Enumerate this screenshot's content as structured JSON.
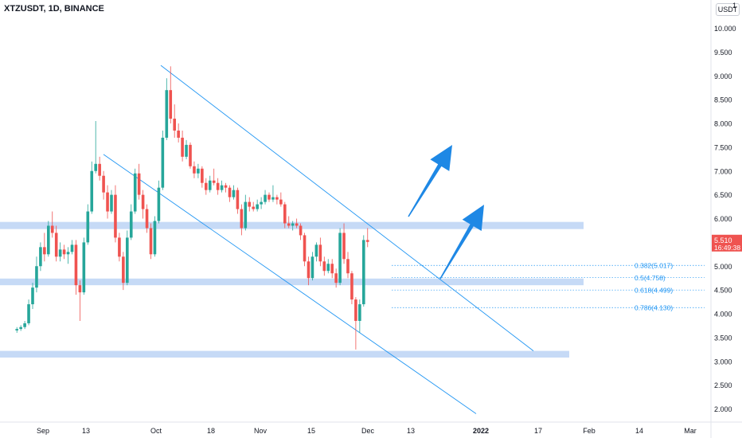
{
  "header": {
    "symbol_label": "XTZUSDT, 1D, BINANCE",
    "currency_button": "USDT",
    "axis_edge_label": "1"
  },
  "colors": {
    "up": "#26a69a",
    "down": "#ef5350",
    "zone_fill": "#bcd4f5",
    "channel_line": "#2196f3",
    "arrow": "#1e88e5",
    "fib_text": "#2196f3",
    "axis_text": "#131722",
    "price_badge": "#ef5350"
  },
  "chart_data": {
    "type": "candlestick",
    "title": "XTZUSDT, 1D, BINANCE",
    "xlabel": "",
    "ylabel": "",
    "ylim": [
      1.75,
      10.35
    ],
    "y_ticks": [
      "10.000",
      "9.500",
      "9.000",
      "8.500",
      "8.000",
      "7.500",
      "7.000",
      "6.500",
      "6.000",
      "5.500",
      "5.000",
      "4.500",
      "4.000",
      "3.500",
      "3.000",
      "2.500",
      "2.000"
    ],
    "y_tick_values": [
      10.0,
      9.5,
      9.0,
      8.5,
      8.0,
      7.5,
      7.0,
      6.5,
      6.0,
      5.5,
      5.0,
      4.5,
      4.0,
      3.5,
      3.0,
      2.5,
      2.0
    ],
    "x_ticks": [
      "Sep",
      "13",
      "Oct",
      "18",
      "Nov",
      "15",
      "Dec",
      "13",
      "2022",
      "17",
      "Feb",
      "14",
      "Mar"
    ],
    "x_tick_days": [
      31,
      43,
      61,
      77,
      92,
      106,
      122,
      135,
      153,
      169,
      184,
      197,
      215
    ],
    "grid": false,
    "candles": [
      {
        "o": 3.65,
        "h": 3.72,
        "l": 3.6,
        "c": 3.68
      },
      {
        "o": 3.68,
        "h": 3.76,
        "l": 3.64,
        "c": 3.72
      },
      {
        "o": 3.72,
        "h": 3.85,
        "l": 3.68,
        "c": 3.8
      },
      {
        "o": 3.8,
        "h": 4.3,
        "l": 3.76,
        "c": 4.2
      },
      {
        "o": 4.2,
        "h": 4.65,
        "l": 4.1,
        "c": 4.55
      },
      {
        "o": 4.55,
        "h": 5.2,
        "l": 4.45,
        "c": 5.0
      },
      {
        "o": 5.0,
        "h": 5.5,
        "l": 4.9,
        "c": 5.4
      },
      {
        "o": 5.4,
        "h": 5.7,
        "l": 5.1,
        "c": 5.25
      },
      {
        "o": 5.25,
        "h": 5.95,
        "l": 5.2,
        "c": 5.85
      },
      {
        "o": 5.85,
        "h": 6.15,
        "l": 5.6,
        "c": 5.7
      },
      {
        "o": 5.7,
        "h": 5.85,
        "l": 5.1,
        "c": 5.2
      },
      {
        "o": 5.2,
        "h": 5.5,
        "l": 5.1,
        "c": 5.35
      },
      {
        "o": 5.35,
        "h": 5.45,
        "l": 5.15,
        "c": 5.25
      },
      {
        "o": 5.25,
        "h": 5.4,
        "l": 5.05,
        "c": 5.3
      },
      {
        "o": 5.3,
        "h": 5.55,
        "l": 5.25,
        "c": 5.45
      },
      {
        "o": 5.45,
        "h": 5.55,
        "l": 4.4,
        "c": 4.6
      },
      {
        "o": 4.6,
        "h": 4.7,
        "l": 3.85,
        "c": 4.45
      },
      {
        "o": 4.45,
        "h": 5.6,
        "l": 4.4,
        "c": 5.5
      },
      {
        "o": 5.5,
        "h": 6.3,
        "l": 5.45,
        "c": 6.15
      },
      {
        "o": 6.15,
        "h": 7.2,
        "l": 6.1,
        "c": 7.0
      },
      {
        "o": 7.0,
        "h": 8.05,
        "l": 6.95,
        "c": 7.15
      },
      {
        "o": 7.15,
        "h": 7.3,
        "l": 6.8,
        "c": 6.9
      },
      {
        "o": 6.9,
        "h": 7.0,
        "l": 6.4,
        "c": 6.55
      },
      {
        "o": 6.55,
        "h": 6.7,
        "l": 6.0,
        "c": 6.15
      },
      {
        "o": 6.15,
        "h": 6.6,
        "l": 6.1,
        "c": 6.5
      },
      {
        "o": 6.5,
        "h": 6.7,
        "l": 5.5,
        "c": 5.6
      },
      {
        "o": 5.6,
        "h": 5.7,
        "l": 5.1,
        "c": 5.2
      },
      {
        "o": 5.2,
        "h": 5.3,
        "l": 4.5,
        "c": 4.65
      },
      {
        "o": 4.65,
        "h": 5.75,
        "l": 4.6,
        "c": 5.6
      },
      {
        "o": 5.6,
        "h": 6.3,
        "l": 5.55,
        "c": 6.15
      },
      {
        "o": 6.15,
        "h": 7.05,
        "l": 6.1,
        "c": 6.95
      },
      {
        "o": 6.95,
        "h": 7.15,
        "l": 6.4,
        "c": 6.5
      },
      {
        "o": 6.5,
        "h": 6.6,
        "l": 6.0,
        "c": 6.2
      },
      {
        "o": 6.2,
        "h": 6.3,
        "l": 5.7,
        "c": 5.8
      },
      {
        "o": 5.8,
        "h": 5.9,
        "l": 5.15,
        "c": 5.25
      },
      {
        "o": 5.25,
        "h": 6.05,
        "l": 5.2,
        "c": 5.95
      },
      {
        "o": 5.95,
        "h": 6.8,
        "l": 5.9,
        "c": 6.65
      },
      {
        "o": 6.65,
        "h": 7.85,
        "l": 6.6,
        "c": 7.7
      },
      {
        "o": 7.7,
        "h": 8.95,
        "l": 7.65,
        "c": 8.7
      },
      {
        "o": 8.7,
        "h": 9.2,
        "l": 8.0,
        "c": 8.1
      },
      {
        "o": 8.1,
        "h": 8.4,
        "l": 7.7,
        "c": 7.85
      },
      {
        "o": 7.85,
        "h": 8.0,
        "l": 7.6,
        "c": 7.7
      },
      {
        "o": 7.7,
        "h": 7.85,
        "l": 7.2,
        "c": 7.3
      },
      {
        "o": 7.3,
        "h": 7.65,
        "l": 7.25,
        "c": 7.55
      },
      {
        "o": 7.55,
        "h": 7.6,
        "l": 7.05,
        "c": 7.1
      },
      {
        "o": 7.1,
        "h": 7.2,
        "l": 6.85,
        "c": 6.95
      },
      {
        "o": 6.95,
        "h": 7.15,
        "l": 6.85,
        "c": 7.05
      },
      {
        "o": 7.05,
        "h": 7.1,
        "l": 6.65,
        "c": 6.75
      },
      {
        "o": 6.75,
        "h": 6.85,
        "l": 6.5,
        "c": 6.6
      },
      {
        "o": 6.6,
        "h": 6.9,
        "l": 6.55,
        "c": 6.8
      },
      {
        "o": 6.8,
        "h": 7.05,
        "l": 6.7,
        "c": 6.75
      },
      {
        "o": 6.75,
        "h": 6.85,
        "l": 6.5,
        "c": 6.6
      },
      {
        "o": 6.6,
        "h": 6.8,
        "l": 6.55,
        "c": 6.7
      },
      {
        "o": 6.7,
        "h": 6.75,
        "l": 6.55,
        "c": 6.65
      },
      {
        "o": 6.65,
        "h": 6.7,
        "l": 6.35,
        "c": 6.45
      },
      {
        "o": 6.45,
        "h": 6.7,
        "l": 6.4,
        "c": 6.6
      },
      {
        "o": 6.6,
        "h": 6.65,
        "l": 6.1,
        "c": 6.2
      },
      {
        "o": 6.2,
        "h": 6.3,
        "l": 5.65,
        "c": 5.8
      },
      {
        "o": 5.8,
        "h": 6.5,
        "l": 5.75,
        "c": 6.35
      },
      {
        "o": 6.35,
        "h": 6.45,
        "l": 6.15,
        "c": 6.25
      },
      {
        "o": 6.25,
        "h": 6.35,
        "l": 6.15,
        "c": 6.2
      },
      {
        "o": 6.2,
        "h": 6.4,
        "l": 6.15,
        "c": 6.3
      },
      {
        "o": 6.3,
        "h": 6.45,
        "l": 6.2,
        "c": 6.35
      },
      {
        "o": 6.35,
        "h": 6.6,
        "l": 6.3,
        "c": 6.5
      },
      {
        "o": 6.5,
        "h": 6.55,
        "l": 6.35,
        "c": 6.4
      },
      {
        "o": 6.4,
        "h": 6.7,
        "l": 6.35,
        "c": 6.45
      },
      {
        "o": 6.45,
        "h": 6.5,
        "l": 6.3,
        "c": 6.4
      },
      {
        "o": 6.4,
        "h": 6.55,
        "l": 6.25,
        "c": 6.3
      },
      {
        "o": 6.3,
        "h": 6.35,
        "l": 5.8,
        "c": 5.9
      },
      {
        "o": 5.9,
        "h": 6.05,
        "l": 5.8,
        "c": 5.85
      },
      {
        "o": 5.85,
        "h": 5.95,
        "l": 5.75,
        "c": 5.9
      },
      {
        "o": 5.9,
        "h": 6.0,
        "l": 5.8,
        "c": 5.85
      },
      {
        "o": 5.85,
        "h": 5.9,
        "l": 5.55,
        "c": 5.65
      },
      {
        "o": 5.65,
        "h": 5.7,
        "l": 5.0,
        "c": 5.1
      },
      {
        "o": 5.1,
        "h": 5.2,
        "l": 4.6,
        "c": 4.75
      },
      {
        "o": 4.75,
        "h": 5.3,
        "l": 4.7,
        "c": 5.2
      },
      {
        "o": 5.2,
        "h": 5.5,
        "l": 5.1,
        "c": 5.45
      },
      {
        "o": 5.45,
        "h": 5.6,
        "l": 5.0,
        "c": 5.1
      },
      {
        "o": 5.1,
        "h": 5.2,
        "l": 4.8,
        "c": 4.9
      },
      {
        "o": 4.9,
        "h": 5.15,
        "l": 4.85,
        "c": 5.05
      },
      {
        "o": 5.05,
        "h": 5.15,
        "l": 4.75,
        "c": 4.85
      },
      {
        "o": 4.85,
        "h": 4.95,
        "l": 4.55,
        "c": 4.65
      },
      {
        "o": 4.65,
        "h": 5.8,
        "l": 4.6,
        "c": 5.7
      },
      {
        "o": 5.7,
        "h": 5.9,
        "l": 5.05,
        "c": 5.15
      },
      {
        "o": 5.15,
        "h": 5.3,
        "l": 4.75,
        "c": 4.85
      },
      {
        "o": 4.85,
        "h": 4.9,
        "l": 4.2,
        "c": 4.3
      },
      {
        "o": 4.3,
        "h": 4.35,
        "l": 3.25,
        "c": 3.85
      },
      {
        "o": 3.85,
        "h": 4.3,
        "l": 3.6,
        "c": 4.2
      },
      {
        "o": 4.2,
        "h": 5.65,
        "l": 4.15,
        "c": 5.55
      },
      {
        "o": 5.55,
        "h": 5.8,
        "l": 5.4,
        "c": 5.51
      }
    ],
    "zones": [
      [
        5.78,
        5.93
      ],
      [
        4.6,
        4.74
      ],
      [
        3.08,
        3.22
      ]
    ],
    "fib_levels": [
      {
        "label": "0.382(5.017)",
        "value": 5.017
      },
      {
        "label": "0.5(4.758)",
        "value": 4.758
      },
      {
        "label": "0.618(4.499)",
        "value": 4.499
      },
      {
        "label": "0.786(4.130)",
        "value": 4.13
      }
    ],
    "channel_upper": [
      [
        0.0,
        9.22
      ],
      [
        0.0,
        3.22
      ]
    ],
    "channel_lower": [
      [
        0.0,
        7.35
      ],
      [
        0.0,
        1.9
      ]
    ],
    "price_badge": {
      "price": "5.510",
      "countdown": "16:49:38",
      "value": 5.51
    },
    "legend": "none"
  }
}
